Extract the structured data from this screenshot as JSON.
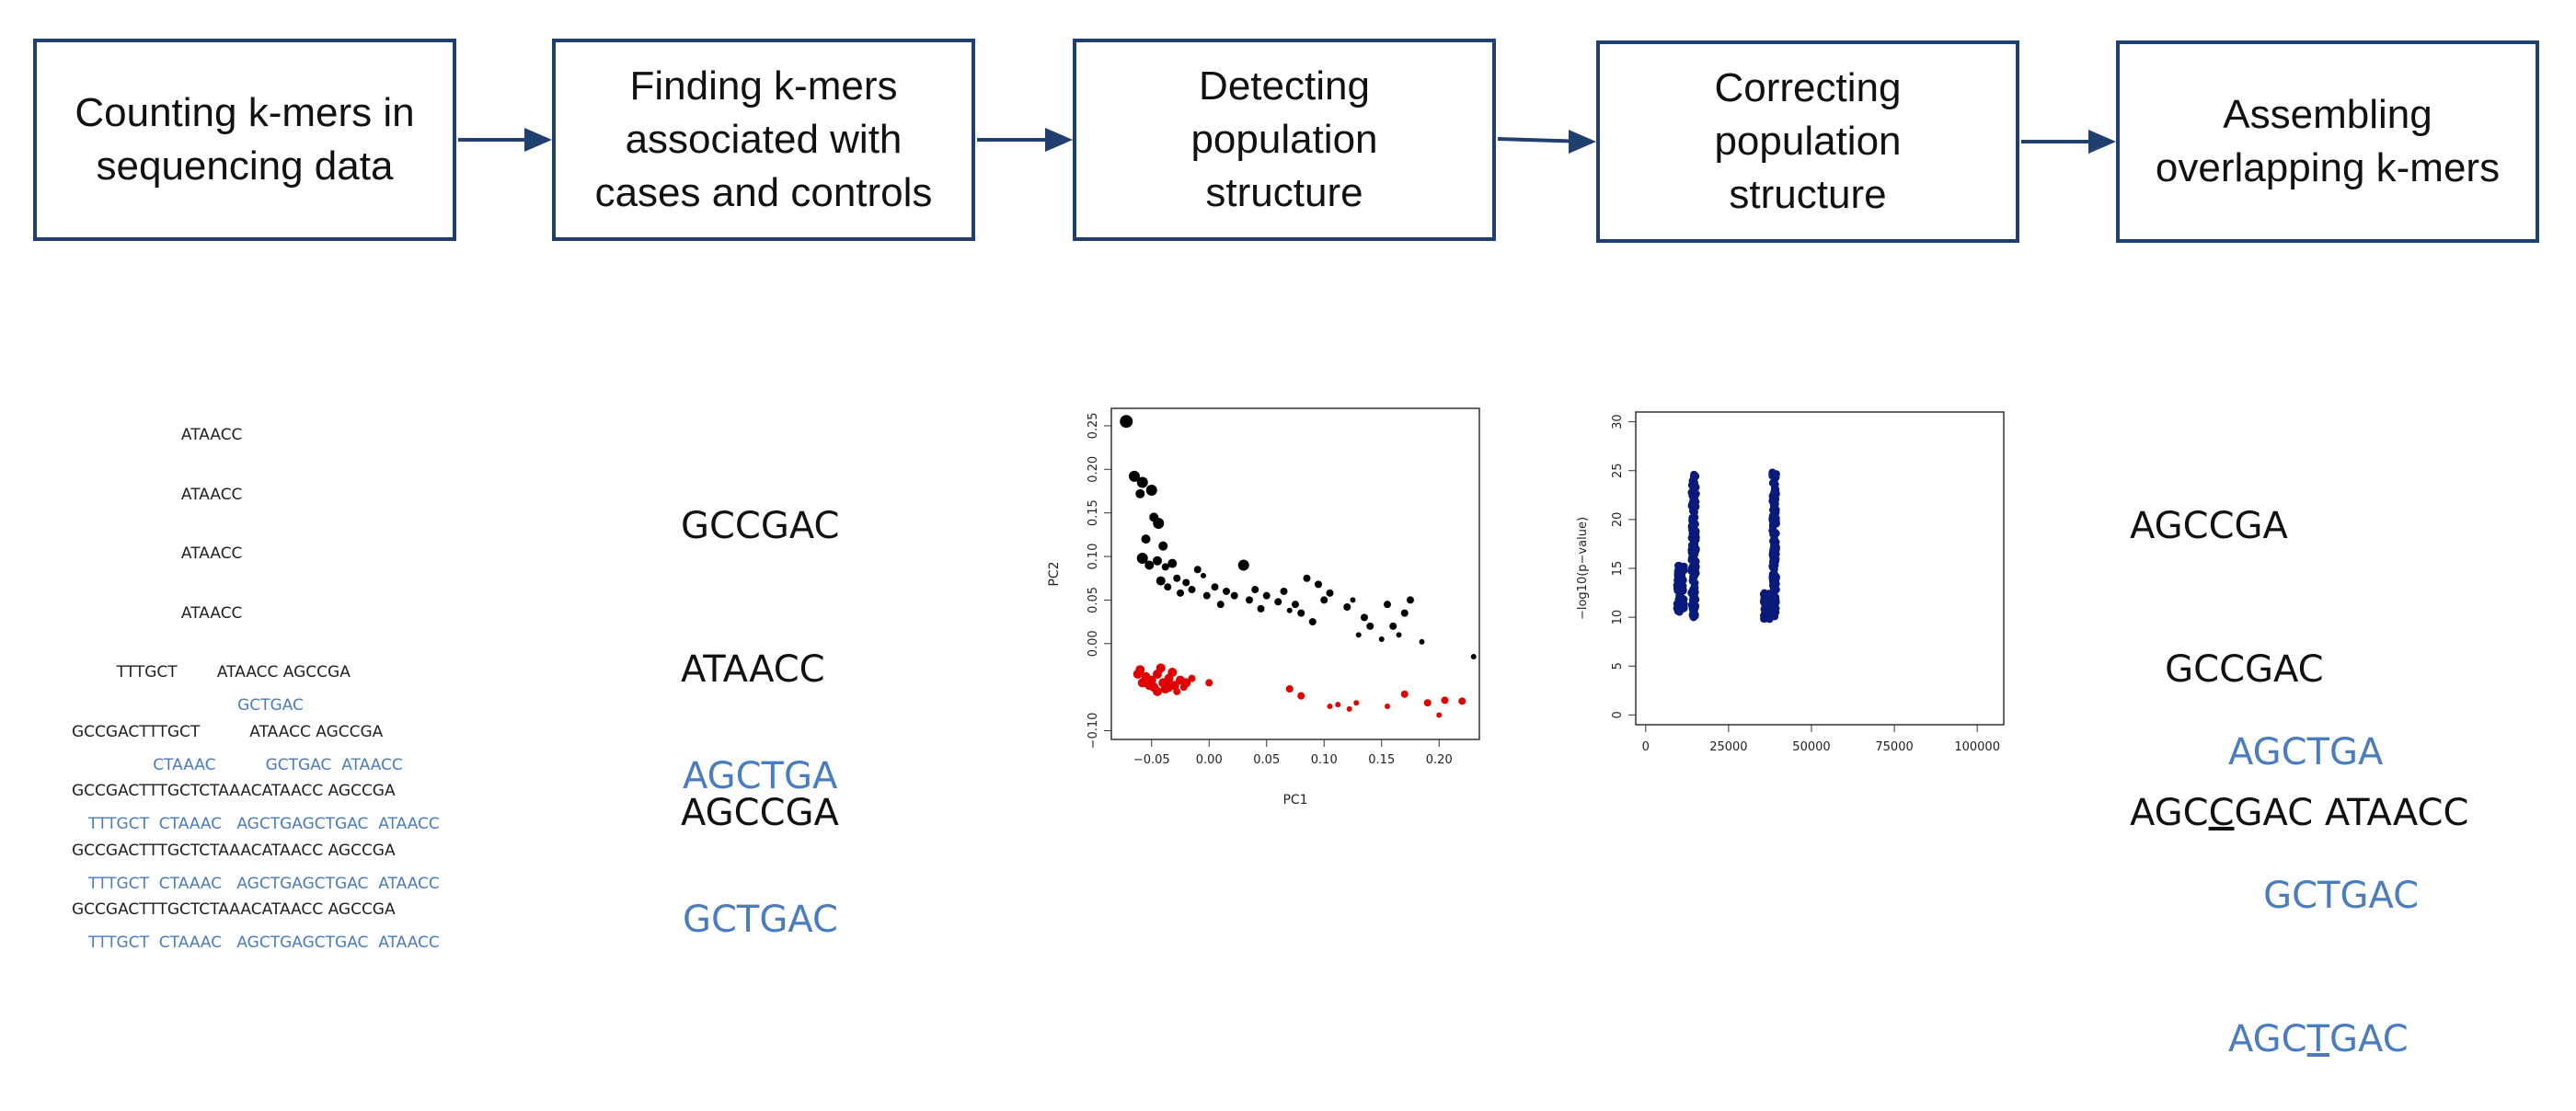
{
  "steps": [
    {
      "lines": [
        "Counting k-mers in",
        "sequencing data"
      ]
    },
    {
      "lines": [
        "Finding k-mers",
        "associated with",
        "cases and controls"
      ]
    },
    {
      "lines": [
        "Detecting",
        "population",
        "structure"
      ]
    },
    {
      "lines": [
        "Correcting",
        "population",
        "structure"
      ]
    },
    {
      "lines": [
        "Assembling",
        "overlapping k-mers"
      ]
    }
  ],
  "reads_black": [
    "                      ATAACC",
    "                      ATAACC",
    "                      ATAACC",
    "                      ATAACC",
    "         TTTGCT        ATAACC AGCCGA",
    "GCCGACTTTGCT          ATAACC AGCCGA",
    "GCCGACTTTGCTCTAAACATAACC AGCCGA",
    "GCCGACTTTGCTCTAAACATAACC AGCCGA",
    "GCCGACTTTGCTCTAAACATAACC AGCCGA"
  ],
  "reads_blue": [
    "                              GCTGAC",
    "             CTAAAC          GCTGAC  ATAACC",
    "TTTGCT  CTAAAC   AGCTGAGCTGAC  ATAACC",
    "TTTGCT  CTAAAC   AGCTGAGCTGAC  ATAACC",
    "TTTGCT  CTAAAC   AGCTGAGCTGAC  ATAACC"
  ],
  "kmers_black": [
    "GCCGAC",
    "ATAACC",
    "AGCCGA"
  ],
  "kmers_blue": [
    "AGCTGA",
    "GCTGAC"
  ],
  "assembly_black": [
    {
      "pre": "AGCCGA",
      "u": "",
      "post": ""
    },
    {
      "pre": "   GCCGAC",
      "u": "",
      "post": ""
    },
    {
      "pre": "AGC",
      "u": "C",
      "post": "GAC ATAACC"
    }
  ],
  "assembly_blue": [
    {
      "pre": "AGCTGA",
      "u": "",
      "post": ""
    },
    {
      "pre": "   GCTGAC",
      "u": "",
      "post": ""
    },
    {
      "pre": "AGC",
      "u": "T",
      "post": "GAC"
    }
  ],
  "chart_data": [
    {
      "type": "scatter",
      "xlabel": "PC1",
      "ylabel": "PC2",
      "xticks": [
        "−0.05",
        "0.00",
        "0.05",
        "0.10",
        "0.15",
        "0.20"
      ],
      "yticks": [
        "−0.10",
        "0.00",
        "0.05",
        "0.10",
        "0.15",
        "0.20",
        "0.25"
      ],
      "xlim": [
        -0.085,
        0.235
      ],
      "ylim": [
        -0.11,
        0.27
      ],
      "series": [
        {
          "color": "#000000",
          "points": [
            [
              -0.072,
              0.255,
              7
            ],
            [
              -0.065,
              0.192,
              6
            ],
            [
              -0.058,
              0.185,
              6
            ],
            [
              -0.05,
              0.176,
              6
            ],
            [
              -0.06,
              0.172,
              5
            ],
            [
              -0.048,
              0.145,
              5
            ],
            [
              -0.044,
              0.138,
              6
            ],
            [
              -0.055,
              0.12,
              5
            ],
            [
              -0.04,
              0.112,
              5
            ],
            [
              -0.058,
              0.098,
              6
            ],
            [
              -0.052,
              0.09,
              5
            ],
            [
              -0.045,
              0.095,
              5
            ],
            [
              -0.038,
              0.088,
              4
            ],
            [
              -0.032,
              0.092,
              5
            ],
            [
              -0.028,
              0.075,
              4
            ],
            [
              -0.042,
              0.072,
              5
            ],
            [
              -0.036,
              0.065,
              4
            ],
            [
              -0.02,
              0.07,
              4
            ],
            [
              -0.015,
              0.062,
              4
            ],
            [
              -0.01,
              0.085,
              4
            ],
            [
              -0.005,
              0.078,
              3
            ],
            [
              0.005,
              0.065,
              4
            ],
            [
              0.015,
              0.06,
              4
            ],
            [
              0.03,
              0.09,
              6
            ],
            [
              0.022,
              0.055,
              4
            ],
            [
              0.035,
              0.05,
              4
            ],
            [
              0.04,
              0.062,
              4
            ],
            [
              0.05,
              0.055,
              4
            ],
            [
              0.06,
              0.048,
              4
            ],
            [
              0.065,
              0.06,
              4
            ],
            [
              0.075,
              0.045,
              4
            ],
            [
              0.08,
              0.035,
              4
            ],
            [
              0.085,
              0.075,
              4
            ],
            [
              0.095,
              0.068,
              4
            ],
            [
              0.1,
              0.05,
              4
            ],
            [
              0.105,
              0.058,
              4
            ],
            [
              0.12,
              0.042,
              4
            ],
            [
              0.125,
              0.05,
              3
            ],
            [
              0.09,
              0.025,
              4
            ],
            [
              0.135,
              0.03,
              4
            ],
            [
              0.14,
              0.02,
              4
            ],
            [
              0.155,
              0.045,
              4
            ],
            [
              0.16,
              0.02,
              4
            ],
            [
              0.17,
              0.035,
              4
            ],
            [
              0.175,
              0.05,
              4
            ],
            [
              0.13,
              0.01,
              3
            ],
            [
              0.15,
              0.005,
              3
            ],
            [
              0.165,
              0.01,
              3
            ],
            [
              0.185,
              0.002,
              3
            ],
            [
              0.23,
              -0.015,
              3
            ],
            [
              0.01,
              0.045,
              4
            ],
            [
              -0.025,
              0.058,
              4
            ],
            [
              0.045,
              0.04,
              4
            ],
            [
              0.07,
              0.038,
              3
            ],
            [
              -0.002,
              0.055,
              4
            ]
          ]
        },
        {
          "color": "#e00000",
          "points": [
            [
              -0.06,
              -0.03,
              5
            ],
            [
              -0.055,
              -0.038,
              5
            ],
            [
              -0.05,
              -0.042,
              5
            ],
            [
              -0.045,
              -0.035,
              5
            ],
            [
              -0.04,
              -0.045,
              5
            ],
            [
              -0.035,
              -0.04,
              5
            ],
            [
              -0.03,
              -0.048,
              5
            ],
            [
              -0.025,
              -0.042,
              5
            ],
            [
              -0.052,
              -0.048,
              5
            ],
            [
              -0.058,
              -0.045,
              5
            ],
            [
              -0.048,
              -0.05,
              5
            ],
            [
              -0.038,
              -0.052,
              5
            ],
            [
              -0.042,
              -0.028,
              5
            ],
            [
              -0.032,
              -0.033,
              5
            ],
            [
              -0.02,
              -0.045,
              5
            ],
            [
              -0.015,
              -0.04,
              4
            ],
            [
              -0.028,
              -0.055,
              4
            ],
            [
              -0.045,
              -0.055,
              5
            ],
            [
              0.0,
              -0.045,
              4
            ],
            [
              0.07,
              -0.052,
              4
            ],
            [
              0.08,
              -0.06,
              4
            ],
            [
              0.105,
              -0.072,
              3
            ],
            [
              0.112,
              -0.07,
              3
            ],
            [
              0.122,
              -0.075,
              3
            ],
            [
              0.128,
              -0.068,
              3
            ],
            [
              0.155,
              -0.072,
              3
            ],
            [
              0.17,
              -0.058,
              4
            ],
            [
              0.19,
              -0.068,
              4
            ],
            [
              0.205,
              -0.065,
              4
            ],
            [
              0.22,
              -0.066,
              4
            ],
            [
              0.2,
              -0.082,
              3
            ],
            [
              -0.062,
              -0.035,
              5
            ],
            [
              -0.035,
              -0.05,
              5
            ],
            [
              -0.022,
              -0.05,
              4
            ]
          ]
        }
      ]
    },
    {
      "type": "scatter",
      "xlabel": "",
      "ylabel": "−log10(p−value)",
      "xticks": [
        "0",
        "25000",
        "50000",
        "75000",
        "100000"
      ],
      "yticks": [
        "0",
        "5",
        "10",
        "15",
        "20",
        "25",
        "30"
      ],
      "xlim": [
        -3000,
        108000
      ],
      "ylim": [
        -1,
        31
      ],
      "series": [
        {
          "color": "#0a1a7a",
          "clusters": [
            {
              "x": 10500,
              "xspread": 2200,
              "ymin": 10.5,
              "ymax": 15.5
            },
            {
              "x": 14500,
              "xspread": 1400,
              "ymin": 10,
              "ymax": 25
            },
            {
              "x": 36500,
              "xspread": 1800,
              "ymin": 9.8,
              "ymax": 12.5
            },
            {
              "x": 38800,
              "xspread": 1200,
              "ymin": 10,
              "ymax": 25
            }
          ]
        }
      ]
    }
  ]
}
